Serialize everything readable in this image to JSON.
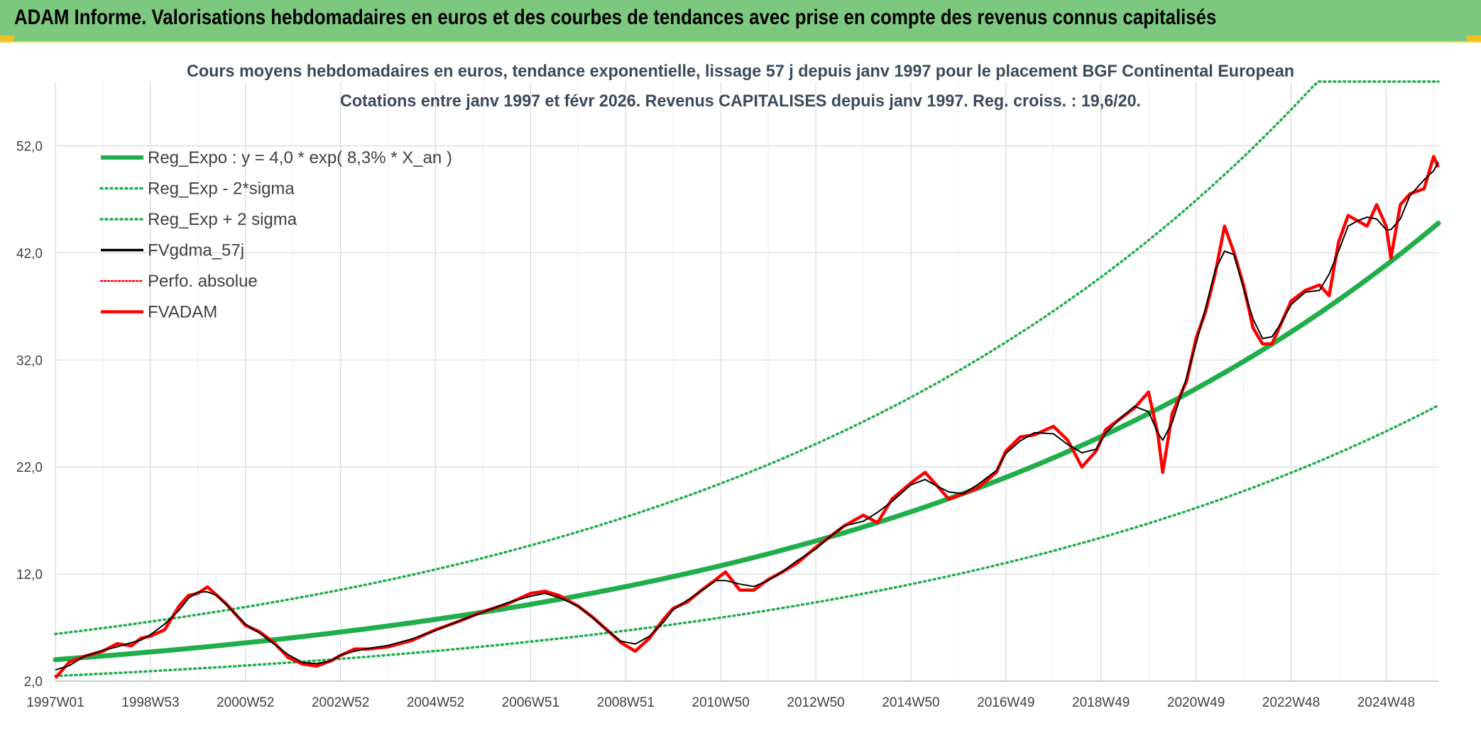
{
  "header": {
    "title": "ADAM Informe. Valorisations hebdomadaires en euros et des courbes de tendances avec prise en compte des revenus connus capitalisés"
  },
  "colors": {
    "header_bg": "#7dc87f",
    "trend": "#1fae4a",
    "price": "#ff0000",
    "smooth": "#000000",
    "grid": "#d9d9d9"
  },
  "chart_data": {
    "type": "line",
    "title_line1": "Cours moyens hebdomadaires en euros, tendance exponentielle, lissage 57 j depuis janv 1997 pour le placement BGF Continental European",
    "title_line2": "Cotations entre janv 1997 et févr 2026. Revenus CAPITALISES depuis janv 1997. Reg. croiss. : 19,6/20.",
    "xlabel": "",
    "ylabel": "",
    "ylim": [
      2,
      58
    ],
    "xlim": [
      1997.0,
      2026.1
    ],
    "y_ticks": [
      "2,0",
      "12,0",
      "22,0",
      "32,0",
      "42,0",
      "52,0"
    ],
    "y_tick_values": [
      2,
      12,
      22,
      32,
      42,
      52
    ],
    "x_ticks": [
      "1997W01",
      "1998W53",
      "2000W52",
      "2002W52",
      "2004W52",
      "2006W51",
      "2008W51",
      "2010W50",
      "2012W50",
      "2014W50",
      "2016W49",
      "2018W49",
      "2020W49",
      "2022W48",
      "2024W48"
    ],
    "x_tick_values": [
      1997.0,
      1999.0,
      2001.0,
      2003.0,
      2005.0,
      2007.0,
      2009.0,
      2011.0,
      2013.0,
      2015.0,
      2017.0,
      2019.0,
      2021.0,
      2023.0,
      2025.0
    ],
    "legend_position": "top-left",
    "series": [
      {
        "name": "Reg_Expo : y = 4,0 * exp( 8,3% *  X_an )",
        "style": "thick-green",
        "formula": {
          "a": 4.0,
          "b": 0.083,
          "factor": 1.0
        }
      },
      {
        "name": "Reg_Exp - 2*sigma",
        "style": "dotted-green",
        "formula": {
          "a": 4.0,
          "b": 0.083,
          "factor": 0.62
        }
      },
      {
        "name": "Reg_Exp + 2 sigma",
        "style": "dotted-green",
        "formula": {
          "a": 4.0,
          "b": 0.083,
          "factor": 1.6
        }
      },
      {
        "name": "FVgdma_57j",
        "style": "black",
        "smoothing_points": 3
      },
      {
        "name": "Perfo. absolue",
        "style": "dotted-red"
      },
      {
        "name": "FVADAM",
        "style": "red",
        "x": [
          1997.0,
          1997.3,
          1997.6,
          1998.0,
          1998.3,
          1998.6,
          1998.8,
          1999.0,
          1999.3,
          1999.6,
          1999.8,
          2000.0,
          2000.2,
          2000.4,
          2000.6,
          2000.8,
          2001.0,
          2001.3,
          2001.6,
          2001.9,
          2002.2,
          2002.5,
          2002.8,
          2003.0,
          2003.3,
          2003.6,
          2004.0,
          2004.5,
          2005.0,
          2005.5,
          2006.0,
          2006.5,
          2007.0,
          2007.3,
          2007.6,
          2008.0,
          2008.3,
          2008.6,
          2008.9,
          2009.2,
          2009.5,
          2009.8,
          2010.0,
          2010.3,
          2010.6,
          2010.9,
          2011.1,
          2011.4,
          2011.7,
          2012.0,
          2012.3,
          2012.6,
          2013.0,
          2013.3,
          2013.6,
          2014.0,
          2014.3,
          2014.6,
          2015.0,
          2015.3,
          2015.5,
          2015.8,
          2016.1,
          2016.4,
          2016.8,
          2017.0,
          2017.3,
          2017.6,
          2018.0,
          2018.3,
          2018.6,
          2018.9,
          2019.1,
          2019.4,
          2019.7,
          2020.0,
          2020.2,
          2020.3,
          2020.5,
          2020.8,
          2021.0,
          2021.2,
          2021.4,
          2021.6,
          2021.8,
          2022.0,
          2022.2,
          2022.4,
          2022.6,
          2022.8,
          2023.0,
          2023.3,
          2023.6,
          2023.8,
          2024.0,
          2024.2,
          2024.4,
          2024.6,
          2024.8,
          2025.0,
          2025.1,
          2025.3,
          2025.5,
          2025.8,
          2026.0,
          2026.1
        ],
        "y": [
          2.3,
          3.8,
          4.3,
          4.8,
          5.5,
          5.3,
          6.0,
          6.2,
          6.8,
          9.0,
          10.0,
          10.2,
          10.8,
          10.0,
          9.2,
          8.2,
          7.2,
          6.6,
          5.6,
          4.2,
          3.6,
          3.4,
          3.9,
          4.4,
          5.0,
          5.0,
          5.2,
          5.8,
          6.8,
          7.6,
          8.5,
          9.2,
          10.2,
          10.4,
          10.0,
          9.0,
          8.0,
          6.8,
          5.6,
          4.8,
          6.0,
          7.8,
          8.8,
          9.4,
          10.5,
          11.5,
          12.2,
          10.5,
          10.5,
          11.5,
          12.2,
          13.0,
          14.5,
          15.5,
          16.5,
          17.5,
          16.8,
          19.0,
          20.5,
          21.5,
          20.5,
          19.0,
          19.5,
          20.0,
          21.5,
          23.5,
          24.8,
          25.0,
          25.8,
          24.5,
          22.0,
          23.5,
          25.5,
          26.5,
          27.5,
          29.0,
          25.0,
          21.5,
          27.0,
          30.0,
          34.0,
          36.5,
          40.0,
          44.5,
          42.0,
          39.0,
          35.0,
          33.5,
          33.5,
          35.5,
          37.5,
          38.5,
          39.0,
          38.0,
          43.0,
          45.5,
          45.0,
          44.5,
          46.5,
          44.5,
          41.5,
          46.5,
          47.5,
          48.0,
          51.0,
          50.0
        ]
      }
    ]
  }
}
